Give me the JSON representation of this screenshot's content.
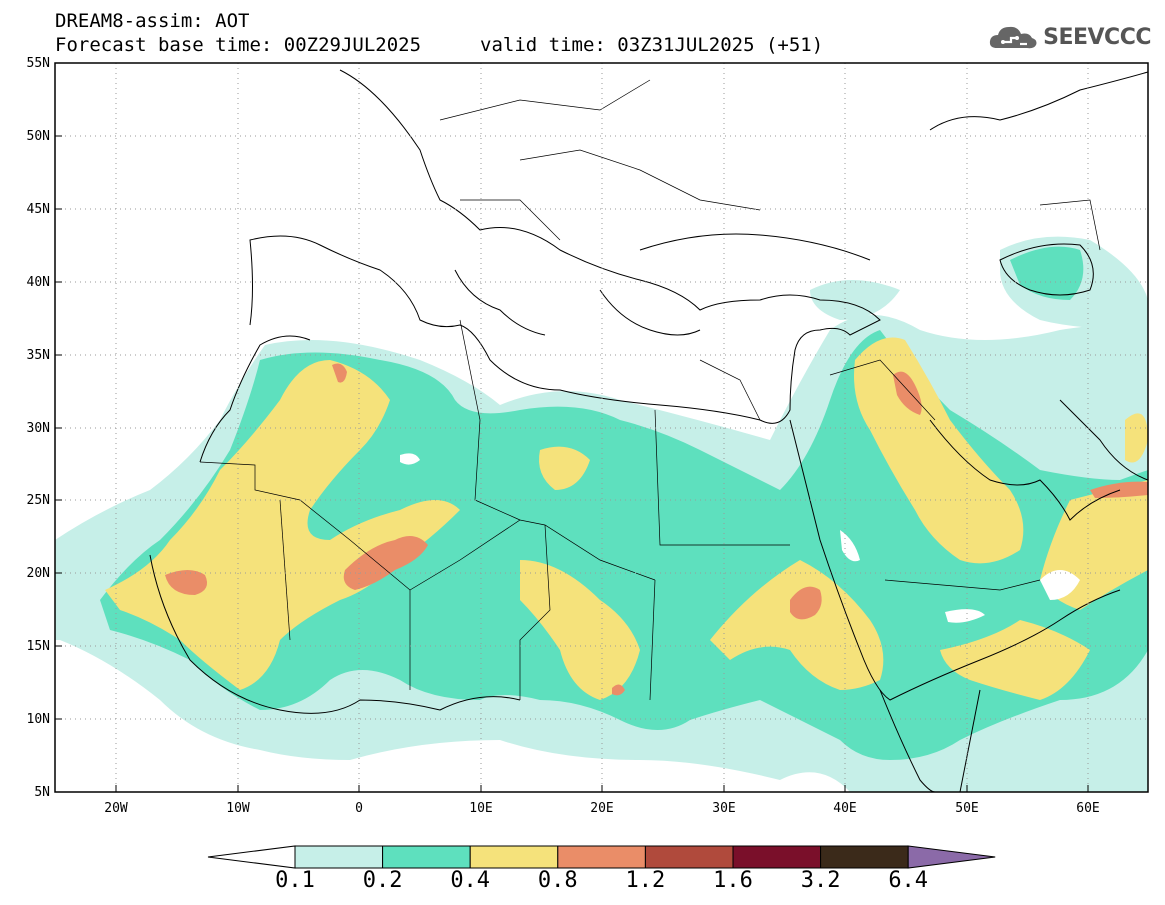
{
  "header": {
    "line1": "DREAM8-assim: AOT",
    "line2": "Forecast base time: 00Z29JUL2025",
    "line3": "valid time: 03Z31JUL2025 (+51)"
  },
  "logo": {
    "text": "SEEVCCC",
    "icon": "cloud-icon"
  },
  "map": {
    "lat_labels": [
      "55N",
      "50N",
      "45N",
      "40N",
      "35N",
      "30N",
      "25N",
      "20N",
      "15N",
      "10N",
      "5N"
    ],
    "lon_labels": [
      "20W",
      "10W",
      "0",
      "10E",
      "20E",
      "30E",
      "40E",
      "50E",
      "60E"
    ],
    "lat_range": [
      5,
      55
    ],
    "lon_range": [
      -25,
      65
    ],
    "grid": "dotted"
  },
  "colorbar": {
    "levels": [
      "0.1",
      "0.2",
      "0.4",
      "0.8",
      "1.2",
      "1.6",
      "3.2",
      "6.4"
    ],
    "colors": [
      "#ffffff",
      "#c6efe8",
      "#5ee0be",
      "#f5e27b",
      "#ea8d68",
      "#b04a3c",
      "#7a0f2a",
      "#3b2a1a",
      "#8b6aa8"
    ]
  }
}
